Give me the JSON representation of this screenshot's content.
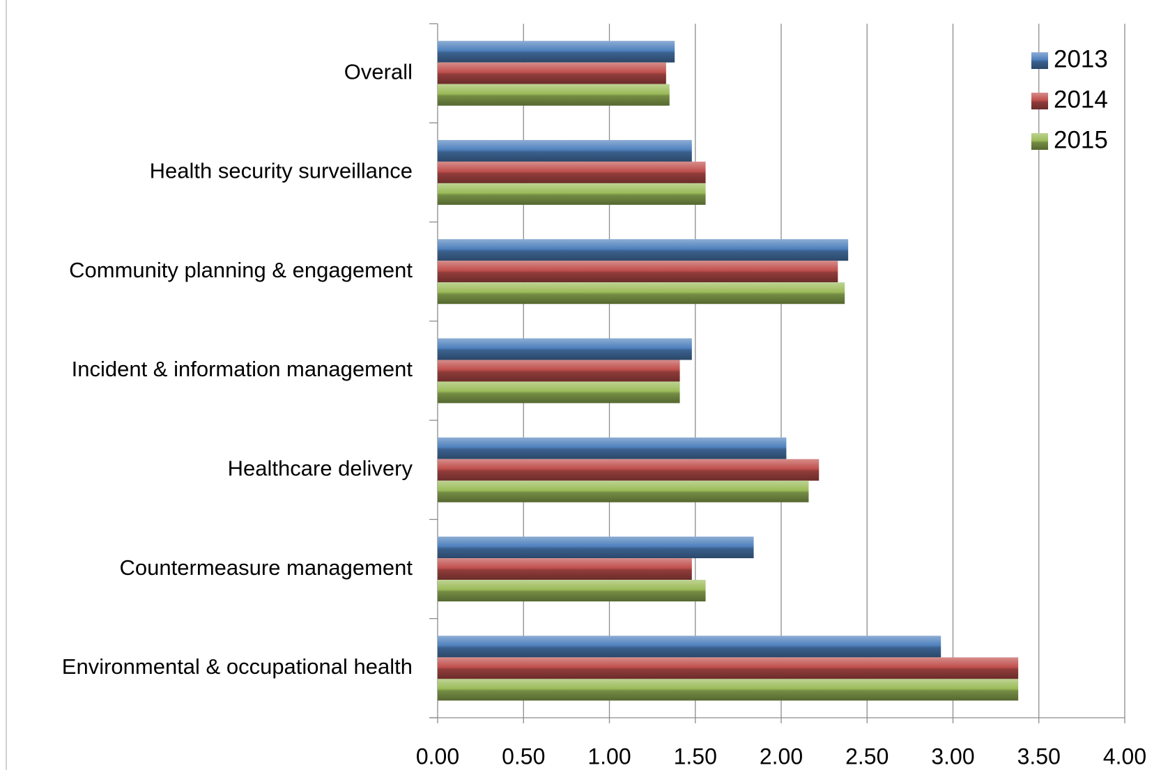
{
  "chart_data": {
    "type": "barh",
    "categories": [
      "Overall",
      "Health security surveillance",
      "Community planning & engagement",
      "Incident & information management",
      "Healthcare delivery",
      "Countermeasure management",
      "Environmental & occupational health"
    ],
    "series": [
      {
        "name": "2013",
        "color": "#4f81bd",
        "values": [
          1.38,
          1.48,
          2.39,
          1.48,
          2.03,
          1.84,
          2.93
        ]
      },
      {
        "name": "2014",
        "color": "#c0504d",
        "values": [
          1.33,
          1.56,
          2.33,
          1.41,
          2.22,
          1.48,
          3.38
        ]
      },
      {
        "name": "2015",
        "color": "#9bbb59",
        "values": [
          1.35,
          1.56,
          2.37,
          1.41,
          2.16,
          1.56,
          3.38
        ]
      }
    ],
    "xlim": [
      0,
      4
    ],
    "xticks": [
      {
        "value": 0,
        "label": "0.00"
      },
      {
        "value": 0.5,
        "label": "0.50"
      },
      {
        "value": 1,
        "label": "1.00"
      },
      {
        "value": 1.5,
        "label": "1.50"
      },
      {
        "value": 2,
        "label": "2.00"
      },
      {
        "value": 2.5,
        "label": "2.50"
      },
      {
        "value": 3,
        "label": "3.00"
      },
      {
        "value": 3.5,
        "label": "3.50"
      },
      {
        "value": 4,
        "label": "4.00"
      }
    ],
    "grid": true,
    "legend": "upper right"
  }
}
